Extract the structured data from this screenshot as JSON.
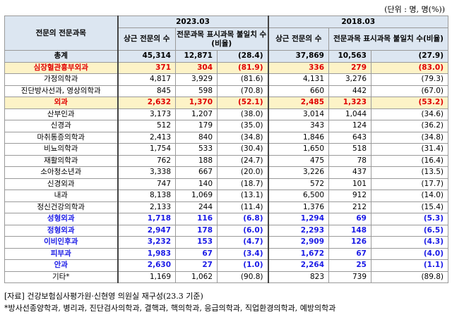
{
  "unit_note": "(단위 : 명, 명(%))",
  "headers": {
    "category": "전문의 전문과목",
    "year_a": "2023.03",
    "year_b": "2018.03",
    "col_specialists": "상근 전문의 수",
    "col_specialists_b": "상근 전문의 수",
    "col_unlabeled": "전문과목 표시과목 불일치 수(비율)",
    "col_unlabeled_b": "전문과목 표시과목 불일치 수(비율)"
  },
  "rows": [
    {
      "name": "총계",
      "a_total": "45,314",
      "a_cnt": "12,871",
      "a_pct": "(28.4)",
      "b_total": "37,869",
      "b_cnt": "10,563",
      "b_pct": "(27.9)",
      "style": "total"
    },
    {
      "name": "심장혈관흉부외과",
      "a_total": "371",
      "a_cnt": "304",
      "a_pct": "(81.9)",
      "b_total": "336",
      "b_cnt": "279",
      "b_pct": "(83.0)",
      "style": "red"
    },
    {
      "name": "가정의학과",
      "a_total": "4,817",
      "a_cnt": "3,929",
      "a_pct": "(81.6)",
      "b_total": "4,131",
      "b_cnt": "3,276",
      "b_pct": "(79.3)",
      "style": ""
    },
    {
      "name": "진단방사선과, 영상의학과",
      "a_total": "845",
      "a_cnt": "598",
      "a_pct": "(70.8)",
      "b_total": "660",
      "b_cnt": "442",
      "b_pct": "(67.0)",
      "style": ""
    },
    {
      "name": "외과",
      "a_total": "2,632",
      "a_cnt": "1,370",
      "a_pct": "(52.1)",
      "b_total": "2,485",
      "b_cnt": "1,323",
      "b_pct": "(53.2)",
      "style": "red"
    },
    {
      "name": "산부인과",
      "a_total": "3,173",
      "a_cnt": "1,207",
      "a_pct": "(38.0)",
      "b_total": "3,014",
      "b_cnt": "1,044",
      "b_pct": "(34.6)",
      "style": ""
    },
    {
      "name": "신경과",
      "a_total": "512",
      "a_cnt": "179",
      "a_pct": "(35.0)",
      "b_total": "343",
      "b_cnt": "124",
      "b_pct": "(36.2)",
      "style": ""
    },
    {
      "name": "마취통증의학과",
      "a_total": "2,413",
      "a_cnt": "840",
      "a_pct": "(34.8)",
      "b_total": "1,846",
      "b_cnt": "643",
      "b_pct": "(34.8)",
      "style": ""
    },
    {
      "name": "비뇨의학과",
      "a_total": "1,754",
      "a_cnt": "533",
      "a_pct": "(30.4)",
      "b_total": "1,650",
      "b_cnt": "518",
      "b_pct": "(31.4)",
      "style": ""
    },
    {
      "name": "재활의학과",
      "a_total": "762",
      "a_cnt": "188",
      "a_pct": "(24.7)",
      "b_total": "475",
      "b_cnt": "78",
      "b_pct": "(16.4)",
      "style": ""
    },
    {
      "name": "소아청소년과",
      "a_total": "3,338",
      "a_cnt": "667",
      "a_pct": "(20.0)",
      "b_total": "3,226",
      "b_cnt": "437",
      "b_pct": "(13.5)",
      "style": ""
    },
    {
      "name": "신경외과",
      "a_total": "747",
      "a_cnt": "140",
      "a_pct": "(18.7)",
      "b_total": "572",
      "b_cnt": "101",
      "b_pct": "(17.7)",
      "style": ""
    },
    {
      "name": "내과",
      "a_total": "8,138",
      "a_cnt": "1,069",
      "a_pct": "(13.1)",
      "b_total": "6,500",
      "b_cnt": "912",
      "b_pct": "(14.0)",
      "style": ""
    },
    {
      "name": "정신건강의학과",
      "a_total": "2,133",
      "a_cnt": "244",
      "a_pct": "(11.4)",
      "b_total": "1,376",
      "b_cnt": "212",
      "b_pct": "(15.4)",
      "style": ""
    },
    {
      "name": "성형외과",
      "a_total": "1,718",
      "a_cnt": "116",
      "a_pct": "(6.8)",
      "b_total": "1,294",
      "b_cnt": "69",
      "b_pct": "(5.3)",
      "style": "blue"
    },
    {
      "name": "정형외과",
      "a_total": "2,947",
      "a_cnt": "178",
      "a_pct": "(6.0)",
      "b_total": "2,293",
      "b_cnt": "148",
      "b_pct": "(6.5)",
      "style": "blue"
    },
    {
      "name": "이비인후과",
      "a_total": "3,232",
      "a_cnt": "153",
      "a_pct": "(4.7)",
      "b_total": "2,909",
      "b_cnt": "126",
      "b_pct": "(4.3)",
      "style": "blue"
    },
    {
      "name": "피부과",
      "a_total": "1,983",
      "a_cnt": "67",
      "a_pct": "(3.4)",
      "b_total": "1,672",
      "b_cnt": "67",
      "b_pct": "(4.0)",
      "style": "blue"
    },
    {
      "name": "안과",
      "a_total": "2,630",
      "a_cnt": "27",
      "a_pct": "(1.0)",
      "b_total": "2,264",
      "b_cnt": "25",
      "b_pct": "(1.1)",
      "style": "blue"
    },
    {
      "name": "기타*",
      "a_total": "1,169",
      "a_cnt": "1,062",
      "a_pct": "(90.8)",
      "b_total": "823",
      "b_cnt": "739",
      "b_pct": "(89.8)",
      "style": ""
    }
  ],
  "footnotes": [
    "[자료] 건강보험심사평가원·신현영 의원실 재구성(23.3 기준)",
    "*방사선종양학과, 병리과, 진단검사의학과, 결핵과, 핵의학과, 응급의학과, 직업환경의학과, 예방의학과"
  ],
  "colors": {
    "header_bg": "#dce6f1",
    "highlight_bg": "#fdf3c7",
    "red_text": "#e00000",
    "blue_text": "#1a1ae6"
  }
}
